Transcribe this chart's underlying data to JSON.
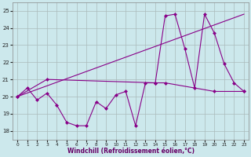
{
  "background_color": "#cce8ec",
  "line_color": "#880088",
  "grid_color": "#aabbbb",
  "xlabel": "Windchill (Refroidissement éolien,°C)",
  "xlim": [
    -0.5,
    23.5
  ],
  "ylim": [
    17.5,
    25.5
  ],
  "yticks": [
    18,
    19,
    20,
    21,
    22,
    23,
    24,
    25
  ],
  "xticks": [
    0,
    1,
    2,
    3,
    4,
    5,
    6,
    7,
    8,
    9,
    10,
    11,
    12,
    13,
    14,
    15,
    16,
    17,
    18,
    19,
    20,
    21,
    22,
    23
  ],
  "line1_x": [
    0,
    1,
    2,
    3,
    4,
    5,
    6,
    7,
    8,
    9,
    10,
    11,
    12,
    13,
    14,
    15,
    16,
    17,
    18,
    19,
    20,
    21,
    22,
    23
  ],
  "line1_y": [
    20.0,
    20.5,
    19.8,
    20.2,
    19.5,
    18.5,
    18.3,
    18.3,
    19.7,
    19.3,
    20.1,
    20.3,
    18.3,
    20.8,
    20.8,
    24.7,
    24.8,
    22.8,
    20.5,
    24.8,
    23.7,
    21.9,
    20.8,
    20.3
  ],
  "line2_x": [
    0,
    3,
    14,
    15,
    20,
    23
  ],
  "line2_y": [
    20.0,
    21.0,
    20.8,
    20.8,
    20.3,
    20.3
  ],
  "line3_x": [
    0,
    23
  ],
  "line3_y": [
    20.0,
    24.8
  ]
}
